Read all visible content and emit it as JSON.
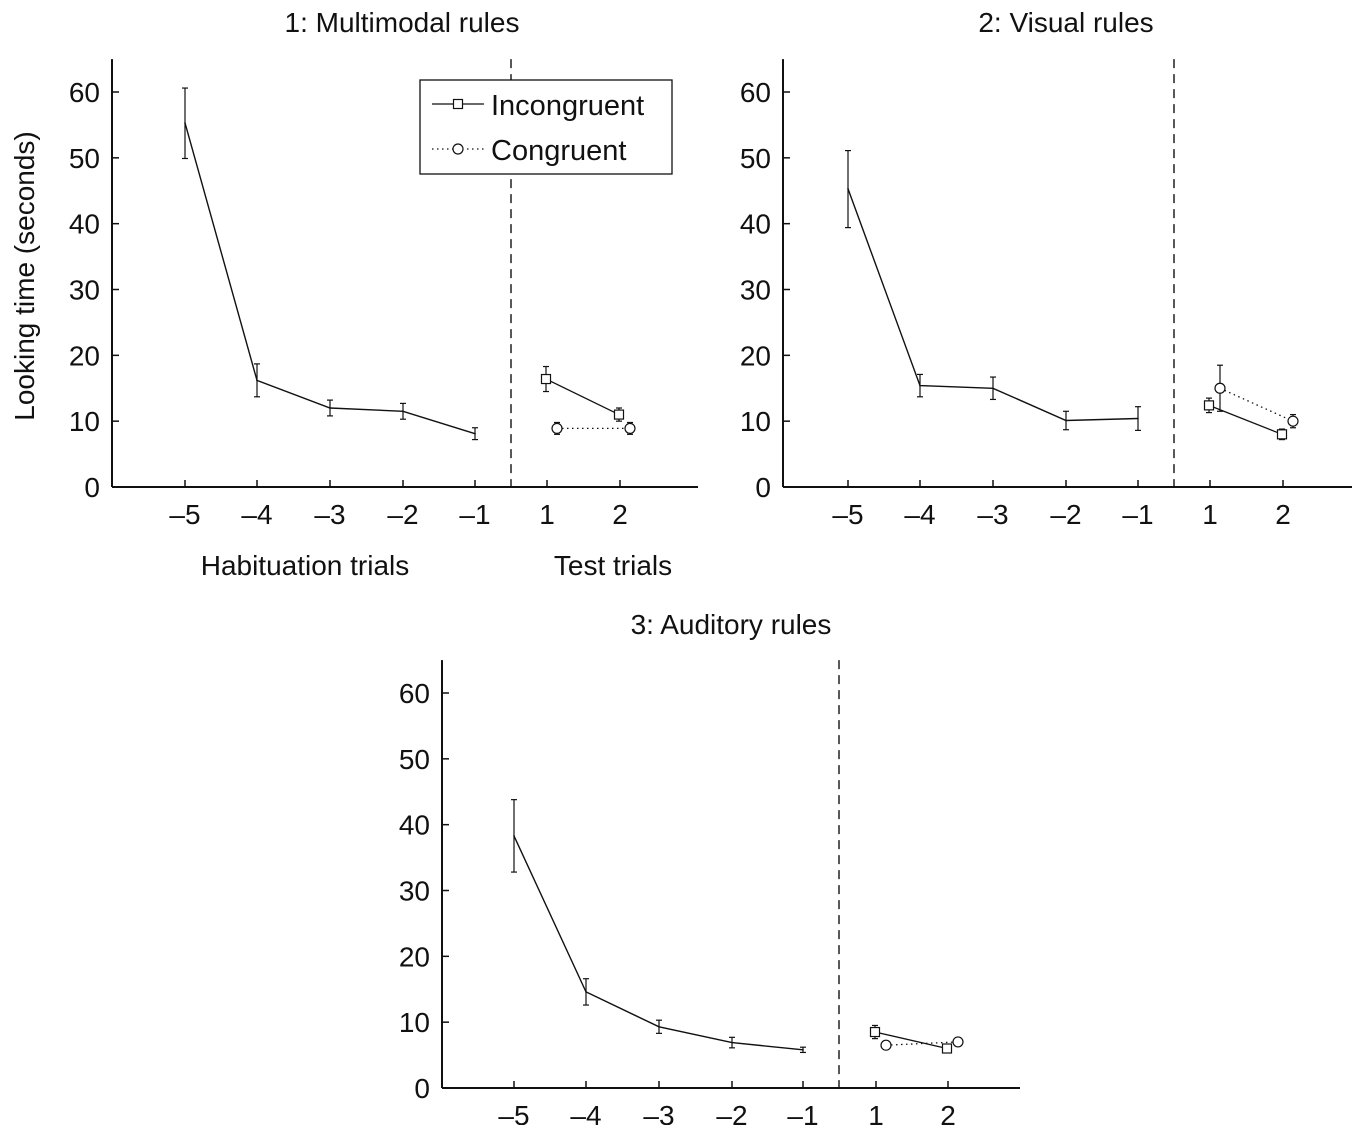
{
  "figure": {
    "ylabel": "Looking time (seconds)",
    "xlabel_habituation": "Habituation trials",
    "xlabel_test": "Test trials"
  },
  "legend": {
    "incongruent": "Incongruent",
    "congruent": "Congruent"
  },
  "colors": {
    "ink": "#111111",
    "background": "#ffffff"
  },
  "chart_data": [
    {
      "type": "line",
      "title": "1: Multimodal rules",
      "ylim": [
        0,
        65
      ],
      "yticks": [
        0,
        10,
        20,
        30,
        40,
        50,
        60
      ],
      "xticks": [
        "–5",
        "–4",
        "–3",
        "–2",
        "–1",
        "1",
        "2"
      ],
      "grid": false,
      "legend_position": "top-right",
      "habituation": {
        "x": [
          -5,
          -4,
          -3,
          -2,
          -1
        ],
        "mean": [
          55.3,
          16.2,
          12.0,
          11.5,
          8.1
        ],
        "err_lo": [
          49.9,
          13.7,
          10.8,
          10.3,
          7.2
        ],
        "err_hi": [
          60.6,
          18.7,
          13.2,
          12.7,
          9.0
        ]
      },
      "series": [
        {
          "name": "Incongruent",
          "marker": "square",
          "line": "solid",
          "x": [
            1,
            2
          ],
          "mean": [
            16.4,
            11.0
          ],
          "err_lo": [
            14.5,
            10.0
          ],
          "err_hi": [
            18.3,
            12.0
          ]
        },
        {
          "name": "Congruent",
          "marker": "circle",
          "line": "dotted",
          "x": [
            1,
            2
          ],
          "mean": [
            8.9,
            8.9
          ],
          "err_lo": [
            8.0,
            8.0
          ],
          "err_hi": [
            9.8,
            9.8
          ]
        }
      ]
    },
    {
      "type": "line",
      "title": "2: Visual rules",
      "ylim": [
        0,
        65
      ],
      "yticks": [
        0,
        10,
        20,
        30,
        40,
        50,
        60
      ],
      "xticks": [
        "–5",
        "–4",
        "–3",
        "–2",
        "–1",
        "1",
        "2"
      ],
      "grid": false,
      "habituation": {
        "x": [
          -5,
          -4,
          -3,
          -2,
          -1
        ],
        "mean": [
          45.3,
          15.4,
          15.0,
          10.1,
          10.4
        ],
        "err_lo": [
          39.4,
          13.7,
          13.3,
          8.7,
          8.6
        ],
        "err_hi": [
          51.1,
          17.1,
          16.7,
          11.5,
          12.2
        ]
      },
      "series": [
        {
          "name": "Incongruent",
          "marker": "square",
          "line": "solid",
          "x": [
            1,
            2
          ],
          "mean": [
            12.4,
            8.0
          ],
          "err_lo": [
            11.3,
            7.2
          ],
          "err_hi": [
            13.5,
            8.8
          ]
        },
        {
          "name": "Congruent",
          "marker": "circle",
          "line": "dotted",
          "x": [
            1,
            2
          ],
          "mean": [
            15.0,
            10.0
          ],
          "err_lo": [
            11.5,
            9.0
          ],
          "err_hi": [
            18.5,
            11.0
          ]
        }
      ]
    },
    {
      "type": "line",
      "title": "3: Auditory rules",
      "ylim": [
        0,
        65
      ],
      "yticks": [
        0,
        10,
        20,
        30,
        40,
        50,
        60
      ],
      "xticks": [
        "–5",
        "–4",
        "–3",
        "–2",
        "–1",
        "1",
        "2"
      ],
      "grid": false,
      "habituation": {
        "x": [
          -5,
          -4,
          -3,
          -2,
          -1
        ],
        "mean": [
          38.3,
          14.6,
          9.3,
          6.9,
          5.8
        ],
        "err_lo": [
          32.8,
          12.6,
          8.3,
          6.1,
          5.4
        ],
        "err_hi": [
          43.8,
          16.6,
          10.3,
          7.7,
          6.2
        ]
      },
      "series": [
        {
          "name": "Incongruent",
          "marker": "square",
          "line": "solid",
          "x": [
            1,
            2
          ],
          "mean": [
            8.5,
            6.0
          ],
          "err_lo": [
            7.5,
            5.5
          ],
          "err_hi": [
            9.5,
            6.5
          ]
        },
        {
          "name": "Congruent",
          "marker": "circle",
          "line": "dotted",
          "x": [
            1,
            2
          ],
          "mean": [
            6.5,
            7.0
          ],
          "err_lo": [
            6.0,
            6.5
          ],
          "err_hi": [
            7.0,
            7.5
          ]
        }
      ]
    }
  ]
}
